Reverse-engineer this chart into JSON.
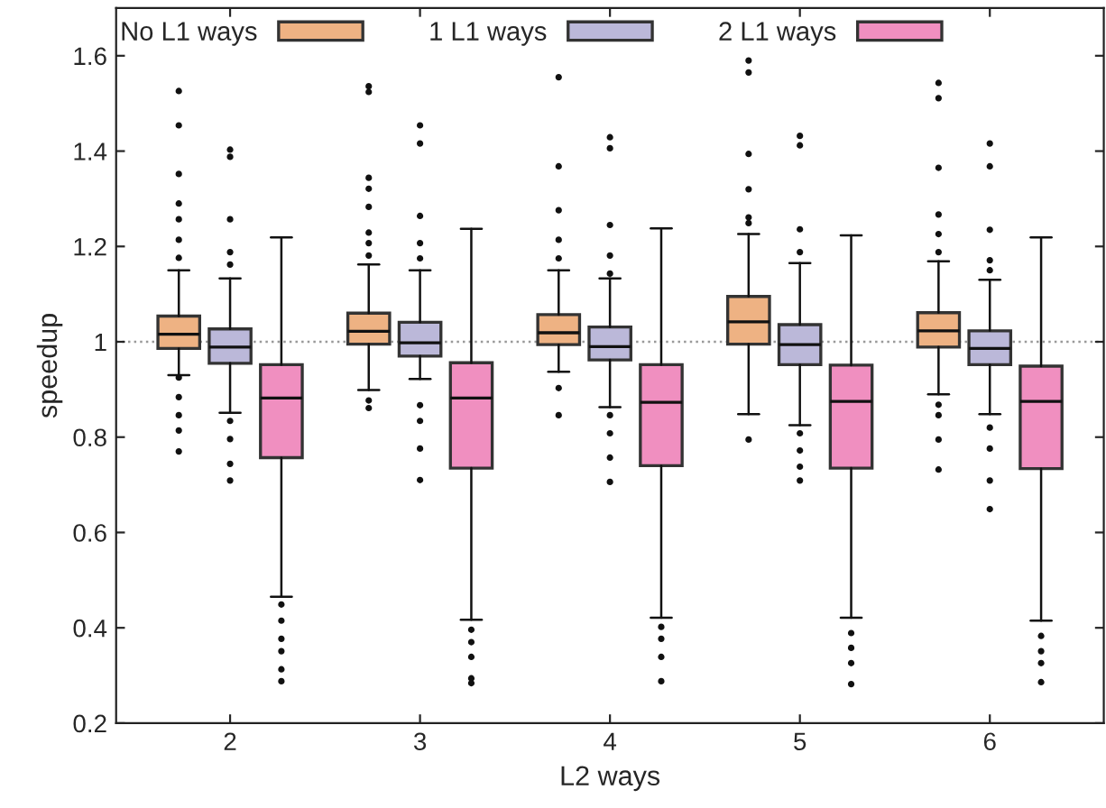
{
  "chart_data": {
    "type": "box",
    "xlabel": "L2 ways",
    "ylabel": "speedup",
    "categories": [
      "2",
      "3",
      "4",
      "5",
      "6"
    ],
    "ylim": [
      0.2,
      1.7
    ],
    "yticks": [
      0.2,
      0.4,
      0.6,
      0.8,
      1,
      1.2,
      1.4,
      1.6
    ],
    "grid": false,
    "legend": "top",
    "ref_lines": [
      {
        "axis": "y",
        "value": 1,
        "color": "#999999",
        "line_style": "dotted"
      }
    ],
    "series": [
      {
        "name": "No L1 ways",
        "color": "#eeb283",
        "boxes": [
          {
            "low": 0.93,
            "q1": 0.986,
            "median": 1.016,
            "q3": 1.054,
            "high": 1.15,
            "outliers": [
              1.526,
              1.454,
              1.352,
              1.29,
              1.257,
              1.214,
              1.176,
              0.925,
              0.884,
              0.846,
              0.814,
              0.77
            ]
          },
          {
            "low": 0.899,
            "q1": 0.995,
            "median": 1.022,
            "q3": 1.06,
            "high": 1.162,
            "outliers": [
              1.536,
              1.524,
              1.344,
              1.321,
              1.283,
              1.229,
              1.207,
              1.181,
              0.877,
              0.861
            ]
          },
          {
            "low": 0.937,
            "q1": 0.994,
            "median": 1.019,
            "q3": 1.057,
            "high": 1.15,
            "outliers": [
              1.555,
              1.368,
              1.276,
              1.214,
              1.175,
              0.903,
              0.846
            ]
          },
          {
            "low": 0.848,
            "q1": 0.995,
            "median": 1.042,
            "q3": 1.095,
            "high": 1.226,
            "outliers": [
              1.59,
              1.565,
              1.394,
              1.32,
              1.261,
              1.249,
              0.795
            ]
          },
          {
            "low": 0.89,
            "q1": 0.989,
            "median": 1.023,
            "q3": 1.061,
            "high": 1.169,
            "outliers": [
              1.543,
              1.511,
              1.365,
              1.267,
              1.226,
              1.188,
              0.868,
              0.846,
              0.795,
              0.732
            ]
          }
        ]
      },
      {
        "name": "1 L1 ways",
        "color": "#bbb8d9",
        "boxes": [
          {
            "low": 0.851,
            "q1": 0.955,
            "median": 0.989,
            "q3": 1.027,
            "high": 1.133,
            "outliers": [
              1.403,
              1.388,
              1.257,
              1.188,
              1.162,
              0.834,
              0.796,
              0.744,
              0.709
            ]
          },
          {
            "low": 0.922,
            "q1": 0.97,
            "median": 0.998,
            "q3": 1.041,
            "high": 1.15,
            "outliers": [
              1.454,
              1.416,
              1.264,
              1.207,
              1.175,
              0.867,
              0.834,
              0.776,
              0.71
            ]
          },
          {
            "low": 0.863,
            "q1": 0.962,
            "median": 0.99,
            "q3": 1.031,
            "high": 1.133,
            "outliers": [
              1.429,
              1.406,
              1.245,
              1.181,
              1.143,
              0.846,
              0.808,
              0.757,
              0.706
            ]
          },
          {
            "low": 0.825,
            "q1": 0.952,
            "median": 0.994,
            "q3": 1.036,
            "high": 1.165,
            "outliers": [
              1.432,
              1.412,
              1.236,
              1.188,
              0.808,
              0.772,
              0.738,
              0.709
            ]
          },
          {
            "low": 0.848,
            "q1": 0.952,
            "median": 0.986,
            "q3": 1.023,
            "high": 1.13,
            "outliers": [
              1.416,
              1.368,
              1.235,
              1.171,
              1.15,
              0.82,
              0.776,
              0.709,
              0.649
            ]
          }
        ]
      },
      {
        "name": "2 L1 ways",
        "color": "#f08fc0",
        "boxes": [
          {
            "low": 0.465,
            "q1": 0.757,
            "median": 0.882,
            "q3": 0.952,
            "high": 1.219,
            "outliers": [
              0.449,
              0.415,
              0.377,
              0.351,
              0.313,
              0.288
            ]
          },
          {
            "low": 0.417,
            "q1": 0.735,
            "median": 0.882,
            "q3": 0.956,
            "high": 1.237,
            "outliers": [
              0.396,
              0.37,
              0.339,
              0.294,
              0.284
            ]
          },
          {
            "low": 0.421,
            "q1": 0.74,
            "median": 0.873,
            "q3": 0.952,
            "high": 1.238,
            "outliers": [
              0.402,
              0.377,
              0.339,
              0.288
            ]
          },
          {
            "low": 0.421,
            "q1": 0.735,
            "median": 0.875,
            "q3": 0.951,
            "high": 1.223,
            "outliers": [
              0.389,
              0.358,
              0.326,
              0.282
            ]
          },
          {
            "low": 0.415,
            "q1": 0.734,
            "median": 0.875,
            "q3": 0.949,
            "high": 1.219,
            "outliers": [
              0.383,
              0.351,
              0.326,
              0.286
            ]
          }
        ]
      }
    ]
  }
}
